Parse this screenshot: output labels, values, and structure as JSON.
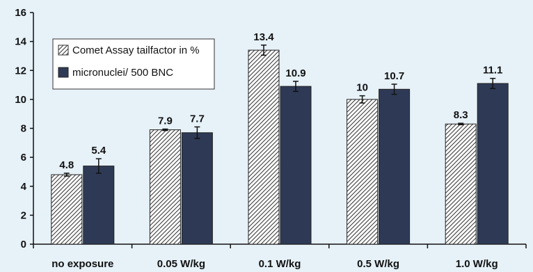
{
  "chart_data": {
    "type": "bar",
    "categories": [
      "no exposure",
      "0.05 W/kg",
      "0.1 W/kg",
      "0.5 W/kg",
      "1.0 W/kg"
    ],
    "series": [
      {
        "name": "Comet Assay tailfactor in %",
        "values": [
          4.8,
          7.9,
          13.4,
          10,
          8.3
        ],
        "labels": [
          "4.8",
          "7.9",
          "13.4",
          "10",
          "8.3"
        ],
        "errors": [
          0.1,
          0.05,
          0.35,
          0.25,
          0.05
        ],
        "fill": "hatched",
        "color": "#ffffff"
      },
      {
        "name": "micronuclei/ 500 BNC",
        "values": [
          5.4,
          7.7,
          10.9,
          10.7,
          11.1
        ],
        "labels": [
          "5.4",
          "7.7",
          "10.9",
          "10.7",
          "11.1"
        ],
        "errors": [
          0.5,
          0.4,
          0.35,
          0.35,
          0.35
        ],
        "fill": "solid",
        "color": "#2e3a55"
      }
    ],
    "ylim": [
      0,
      16
    ],
    "yticks": [
      "0",
      "2",
      "4",
      "6",
      "8",
      "10",
      "12",
      "14",
      "16"
    ],
    "grid": false,
    "legend_position": "top-left",
    "background": "#e6f1f8"
  }
}
